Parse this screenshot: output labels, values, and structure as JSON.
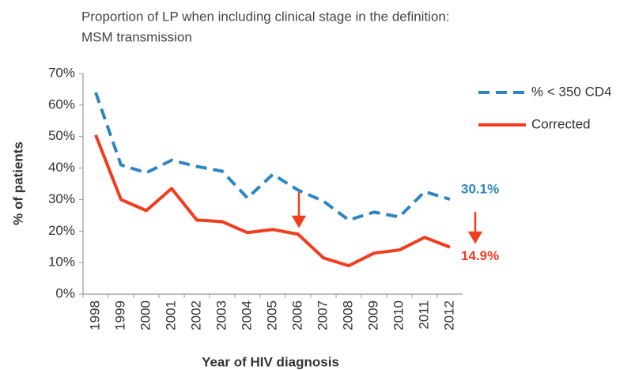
{
  "chart_data": {
    "type": "line",
    "title": "Proportion of LP when including clinical stage in the definition:",
    "subtitle": "MSM transmission",
    "x_label": "Year of HIV diagnosis",
    "y_label": "% of patients",
    "categories": [
      "1998",
      "1999",
      "2000",
      "2001",
      "2002",
      "2003",
      "2004",
      "2005",
      "2006",
      "2007",
      "2008",
      "2009",
      "2010",
      "2011",
      "2012"
    ],
    "series": [
      {
        "name": "% < 350 CD4",
        "color": "#2e86c1",
        "dash": true,
        "values": [
          64,
          41,
          38.5,
          42.5,
          40.5,
          39,
          30.5,
          38,
          33,
          29.5,
          23.5,
          26,
          24.5,
          32.5,
          30.1
        ],
        "value_labels": [
          null,
          null,
          null,
          null,
          null,
          null,
          null,
          null,
          null,
          null,
          null,
          null,
          null,
          null,
          "30.1%"
        ]
      },
      {
        "name": "Corrected",
        "color": "#f23c1e",
        "dash": false,
        "values": [
          50.5,
          30,
          26.5,
          33.5,
          23.5,
          23,
          19.5,
          20.5,
          19,
          11.5,
          9,
          13,
          14,
          18,
          14.9
        ],
        "value_labels": [
          null,
          null,
          null,
          null,
          null,
          null,
          null,
          null,
          null,
          null,
          null,
          null,
          null,
          null,
          "14.9%"
        ]
      }
    ],
    "ylim": [
      0,
      70
    ],
    "yticks": [
      {
        "value": 0,
        "label": "0%"
      },
      {
        "value": 10,
        "label": "10%"
      },
      {
        "value": 20,
        "label": "20%"
      },
      {
        "value": 30,
        "label": "30%"
      },
      {
        "value": 40,
        "label": "40%"
      },
      {
        "value": 50,
        "label": "50%"
      },
      {
        "value": 60,
        "label": "60%"
      },
      {
        "value": 70,
        "label": "70%"
      }
    ],
    "grid": false,
    "legend": "right"
  }
}
